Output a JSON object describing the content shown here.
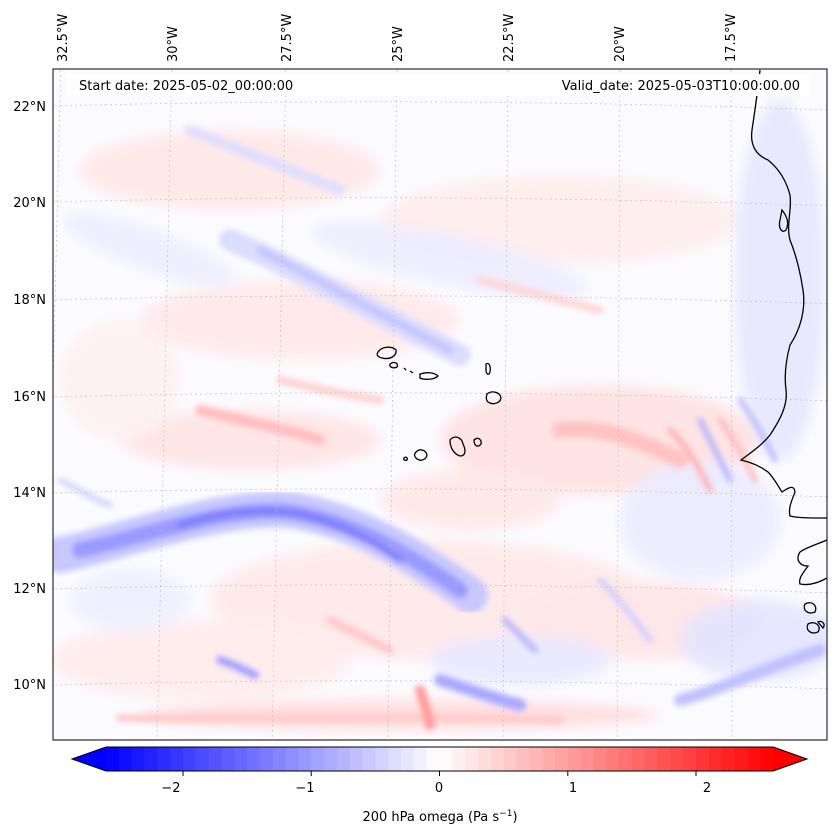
{
  "header": {
    "start_date": "Start date: 2025-05-02_00:00:00",
    "valid_date": "Valid_date: 2025-05-03T10:00:00.00"
  },
  "axes": {
    "lon_labels": [
      "32.5°W",
      "30°W",
      "27.5°W",
      "25°W",
      "22.5°W",
      "20°W",
      "17.5°W"
    ],
    "lat_labels": [
      "22°N",
      "20°N",
      "18°N",
      "16°N",
      "14°N",
      "12°N",
      "10°N"
    ]
  },
  "colorbar": {
    "ticks": [
      "−2",
      "−1",
      "0",
      "1",
      "2"
    ],
    "tick_values": [
      -2,
      -1,
      0,
      1,
      2
    ],
    "range": [
      -2.6,
      2.6
    ],
    "label": "200 hPa omega (Pa s",
    "label_sup": "−1",
    "label_end": ")",
    "colormap": "bwr",
    "colors": {
      "negative": "#0000ff",
      "zero": "#ffffff",
      "positive": "#ff0000"
    }
  }
}
